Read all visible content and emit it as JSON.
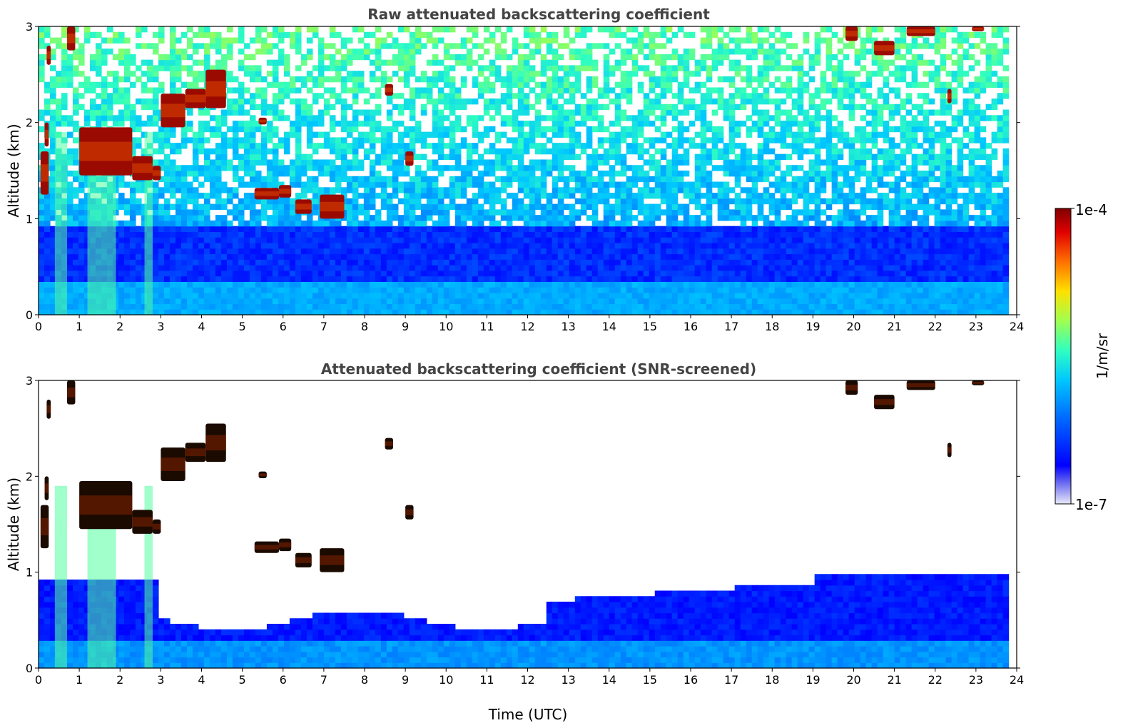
{
  "chart_data": [
    {
      "type": "heatmap",
      "title": "Raw attenuated backscattering coefficient",
      "xlabel": "",
      "ylabel": "Altitude (km)",
      "xlim": [
        0,
        24
      ],
      "ylim": [
        0,
        3
      ],
      "x_ticks": [
        "0",
        "1",
        "2",
        "3",
        "4",
        "5",
        "6",
        "7",
        "8",
        "9",
        "10",
        "11",
        "12",
        "13",
        "14",
        "15",
        "16",
        "17",
        "18",
        "19",
        "20",
        "21",
        "22",
        "23",
        "24"
      ],
      "y_ticks": [
        "0",
        "1",
        "2",
        "3"
      ],
      "colormap": "jet",
      "screened": false
    },
    {
      "type": "heatmap",
      "title": "Attenuated backscattering coefficient (SNR-screened)",
      "xlabel": "Time (UTC)",
      "ylabel": "Altitude (km)",
      "xlim": [
        0,
        24
      ],
      "ylim": [
        0,
        3
      ],
      "x_ticks": [
        "0",
        "1",
        "2",
        "3",
        "4",
        "5",
        "6",
        "7",
        "8",
        "9",
        "10",
        "11",
        "12",
        "13",
        "14",
        "15",
        "16",
        "17",
        "18",
        "19",
        "20",
        "21",
        "22",
        "23",
        "24"
      ],
      "y_ticks": [
        "0",
        "1",
        "2",
        "3"
      ],
      "colormap": "jet",
      "screened": true
    }
  ],
  "colorbar": {
    "label": "1/m/sr",
    "min_label": "1e-7",
    "max_label": "1e-4",
    "scale": "log",
    "min": 1e-07,
    "max": 0.0001
  }
}
